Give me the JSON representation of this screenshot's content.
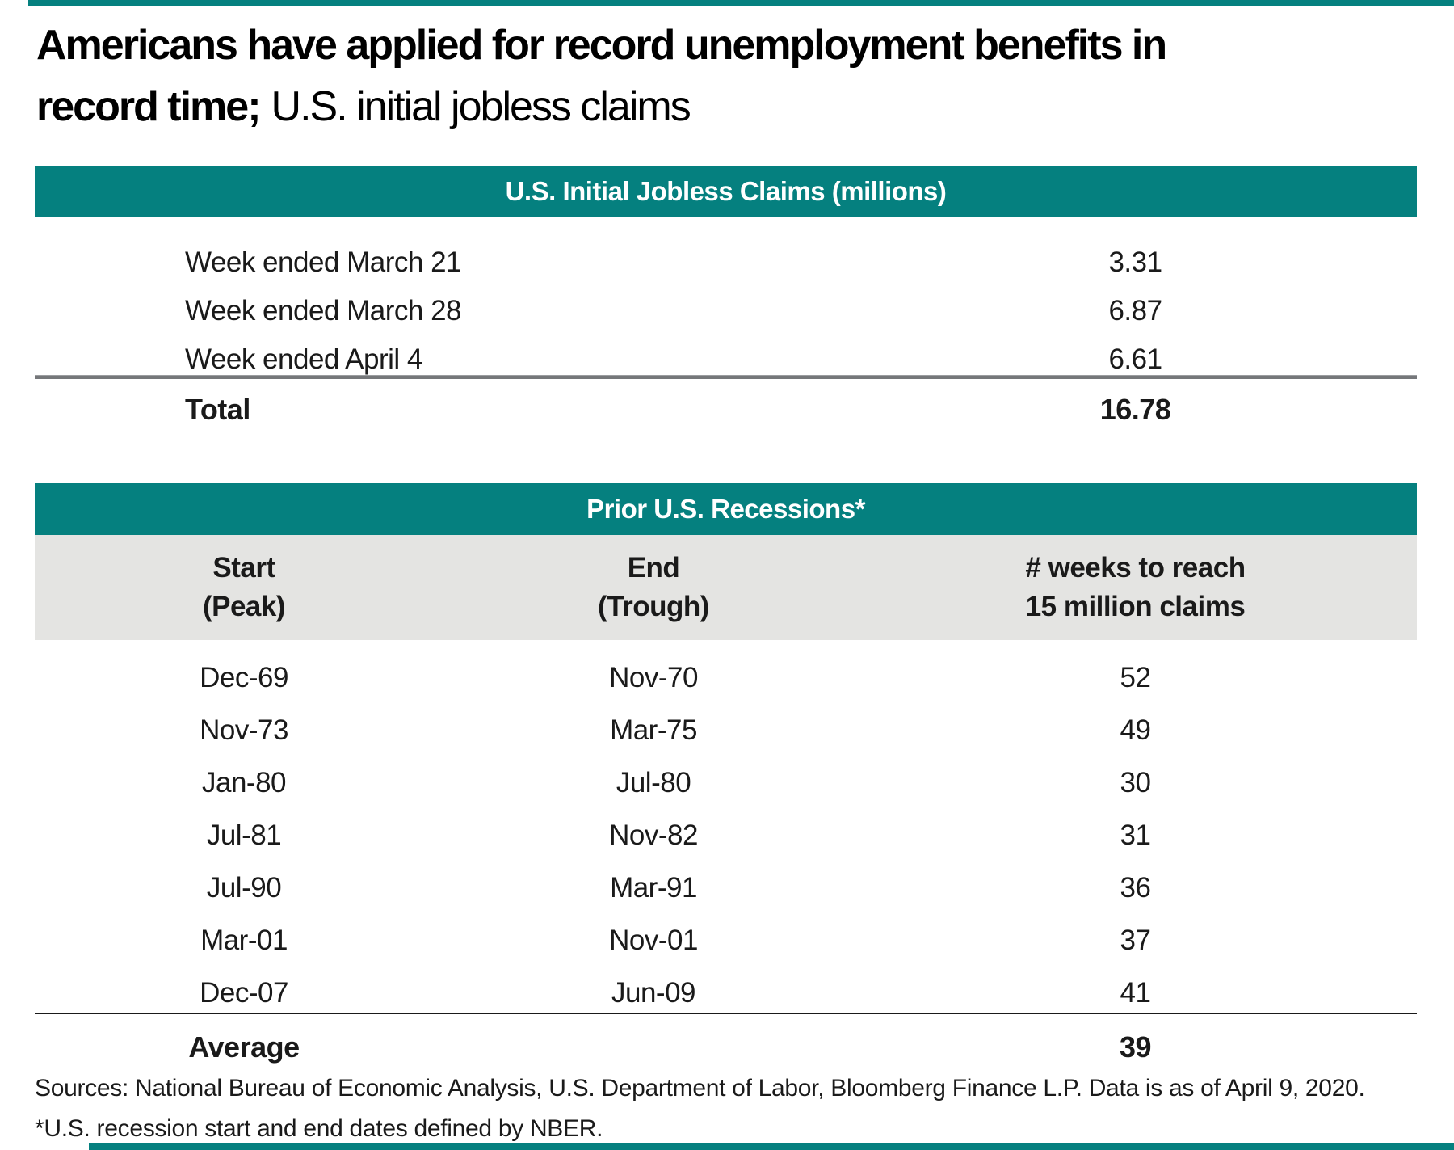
{
  "header": {
    "title_line1": "Americans have applied for record unemployment benefits in",
    "title_line2_bold": "record time;",
    "title_line2_regular": "U.S. initial jobless claims"
  },
  "chart_data": [
    {
      "type": "table",
      "title": "U.S. Initial Jobless Claims (millions)",
      "rows": [
        {
          "label": "Week ended March 21",
          "value": "3.31"
        },
        {
          "label": "Week ended March 28",
          "value": "6.87"
        },
        {
          "label": "Week ended April 4",
          "value": "6.61"
        }
      ],
      "total": {
        "label": "Total",
        "value": "16.78"
      }
    },
    {
      "type": "table",
      "title": "Prior U.S. Recessions*",
      "columns": [
        {
          "line1": "Start",
          "line2": "(Peak)"
        },
        {
          "line1": "End",
          "line2": "(Trough)"
        },
        {
          "line1": "# weeks to reach",
          "line2": "15 million claims"
        }
      ],
      "rows": [
        {
          "start": "Dec-69",
          "end": "Nov-70",
          "weeks": "52"
        },
        {
          "start": "Nov-73",
          "end": "Mar-75",
          "weeks": "49"
        },
        {
          "start": "Jan-80",
          "end": "Jul-80",
          "weeks": "30"
        },
        {
          "start": "Jul-81",
          "end": "Nov-82",
          "weeks": "31"
        },
        {
          "start": "Jul-90",
          "end": "Mar-91",
          "weeks": "36"
        },
        {
          "start": "Mar-01",
          "end": "Nov-01",
          "weeks": "37"
        },
        {
          "start": "Dec-07",
          "end": "Jun-09",
          "weeks": "41"
        }
      ],
      "average": {
        "label": "Average",
        "value": "39"
      }
    }
  ],
  "footer": {
    "sources": "Sources: National Bureau of Economic Analysis, U.S. Department of Labor, Bloomberg Finance L.P. Data is as of April 9, 2020. *U.S. recession start and end dates defined by NBER."
  },
  "colors": {
    "teal": "#05807f",
    "band_gray": "#e4e4e2",
    "rule_gray": "#75777a",
    "rule_black": "#1a1a1a"
  }
}
